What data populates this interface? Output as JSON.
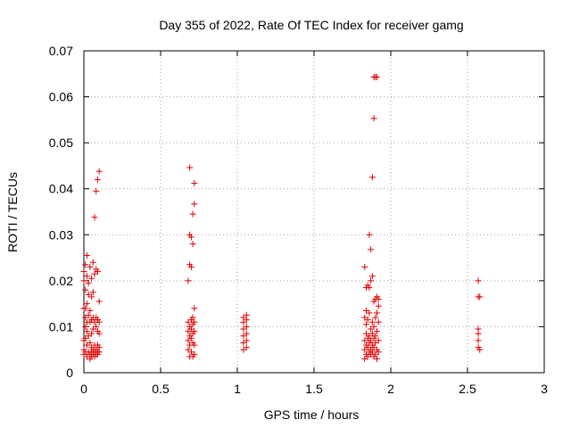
{
  "chart_data": {
    "type": "scatter",
    "title": "Day 355 of 2022, Rate Of TEC Index for receiver gamg",
    "xlabel": "GPS time / hours",
    "ylabel": "ROTI / TECUs",
    "xlim": [
      0,
      3
    ],
    "ylim": [
      0,
      0.07
    ],
    "x_ticks": [
      "0",
      "0.5",
      "1",
      "1.5",
      "2",
      "2.5",
      "3"
    ],
    "y_ticks": [
      "0",
      "0.01",
      "0.02",
      "0.03",
      "0.04",
      "0.05",
      "0.06",
      "0.07"
    ],
    "grid": true,
    "marker": "+",
    "color": "#e00000",
    "points": [
      [
        0.0,
        0.004
      ],
      [
        0.0,
        0.005
      ],
      [
        0.0,
        0.007
      ],
      [
        0.0,
        0.014
      ],
      [
        0.0,
        0.02
      ],
      [
        0.0,
        0.022
      ],
      [
        0.01,
        0.0045
      ],
      [
        0.01,
        0.0075
      ],
      [
        0.01,
        0.01
      ],
      [
        0.01,
        0.012
      ],
      [
        0.01,
        0.014
      ],
      [
        0.01,
        0.018
      ],
      [
        0.01,
        0.0235
      ],
      [
        0.02,
        0.0035
      ],
      [
        0.02,
        0.006
      ],
      [
        0.02,
        0.009
      ],
      [
        0.02,
        0.011
      ],
      [
        0.02,
        0.015
      ],
      [
        0.02,
        0.021
      ],
      [
        0.02,
        0.0255
      ],
      [
        0.03,
        0.0045
      ],
      [
        0.03,
        0.008
      ],
      [
        0.03,
        0.0125
      ],
      [
        0.03,
        0.017
      ],
      [
        0.03,
        0.0195
      ],
      [
        0.04,
        0.003
      ],
      [
        0.04,
        0.004
      ],
      [
        0.04,
        0.0065
      ],
      [
        0.04,
        0.011
      ],
      [
        0.04,
        0.0135
      ],
      [
        0.04,
        0.023
      ],
      [
        0.05,
        0.0035
      ],
      [
        0.05,
        0.0045
      ],
      [
        0.05,
        0.0055
      ],
      [
        0.05,
        0.0085
      ],
      [
        0.05,
        0.0115
      ],
      [
        0.05,
        0.0165
      ],
      [
        0.05,
        0.0205
      ],
      [
        0.06,
        0.004
      ],
      [
        0.06,
        0.005
      ],
      [
        0.06,
        0.0095
      ],
      [
        0.06,
        0.012
      ],
      [
        0.06,
        0.0175
      ],
      [
        0.06,
        0.024
      ],
      [
        0.07,
        0.0035
      ],
      [
        0.07,
        0.0045
      ],
      [
        0.07,
        0.006
      ],
      [
        0.07,
        0.011
      ],
      [
        0.07,
        0.0215
      ],
      [
        0.07,
        0.0338
      ],
      [
        0.08,
        0.004
      ],
      [
        0.08,
        0.005
      ],
      [
        0.08,
        0.01
      ],
      [
        0.08,
        0.012
      ],
      [
        0.08,
        0.0225
      ],
      [
        0.08,
        0.0395
      ],
      [
        0.09,
        0.004
      ],
      [
        0.09,
        0.0045
      ],
      [
        0.09,
        0.006
      ],
      [
        0.09,
        0.009
      ],
      [
        0.09,
        0.0115
      ],
      [
        0.09,
        0.022
      ],
      [
        0.09,
        0.042
      ],
      [
        0.1,
        0.0045
      ],
      [
        0.1,
        0.0055
      ],
      [
        0.1,
        0.0085
      ],
      [
        0.1,
        0.011
      ],
      [
        0.1,
        0.0155
      ],
      [
        0.1,
        0.0438
      ],
      [
        0.68,
        0.005
      ],
      [
        0.68,
        0.007
      ],
      [
        0.68,
        0.009
      ],
      [
        0.68,
        0.011
      ],
      [
        0.68,
        0.02
      ],
      [
        0.69,
        0.0035
      ],
      [
        0.69,
        0.006
      ],
      [
        0.69,
        0.008
      ],
      [
        0.69,
        0.01
      ],
      [
        0.69,
        0.0235
      ],
      [
        0.69,
        0.03
      ],
      [
        0.69,
        0.0446
      ],
      [
        0.7,
        0.0045
      ],
      [
        0.7,
        0.0075
      ],
      [
        0.7,
        0.0095
      ],
      [
        0.7,
        0.0115
      ],
      [
        0.7,
        0.023
      ],
      [
        0.7,
        0.0295
      ],
      [
        0.71,
        0.0035
      ],
      [
        0.71,
        0.0065
      ],
      [
        0.71,
        0.0085
      ],
      [
        0.71,
        0.0105
      ],
      [
        0.71,
        0.012
      ],
      [
        0.71,
        0.028
      ],
      [
        0.71,
        0.0345
      ],
      [
        0.72,
        0.004
      ],
      [
        0.72,
        0.006
      ],
      [
        0.72,
        0.009
      ],
      [
        0.72,
        0.011
      ],
      [
        0.72,
        0.014
      ],
      [
        0.72,
        0.0367
      ],
      [
        0.72,
        0.0412
      ],
      [
        1.04,
        0.005
      ],
      [
        1.04,
        0.0065
      ],
      [
        1.04,
        0.008
      ],
      [
        1.04,
        0.0095
      ],
      [
        1.04,
        0.011
      ],
      [
        1.04,
        0.012
      ],
      [
        1.06,
        0.0055
      ],
      [
        1.06,
        0.007
      ],
      [
        1.06,
        0.0085
      ],
      [
        1.06,
        0.01
      ],
      [
        1.06,
        0.0115
      ],
      [
        1.06,
        0.0125
      ],
      [
        1.83,
        0.003
      ],
      [
        1.83,
        0.005
      ],
      [
        1.83,
        0.007
      ],
      [
        1.83,
        0.012
      ],
      [
        1.83,
        0.023
      ],
      [
        1.84,
        0.004
      ],
      [
        1.84,
        0.006
      ],
      [
        1.84,
        0.0085
      ],
      [
        1.84,
        0.0105
      ],
      [
        1.84,
        0.0135
      ],
      [
        1.84,
        0.0185
      ],
      [
        1.85,
        0.0035
      ],
      [
        1.85,
        0.0055
      ],
      [
        1.85,
        0.0075
      ],
      [
        1.85,
        0.0115
      ],
      [
        1.85,
        0.019
      ],
      [
        1.86,
        0.0045
      ],
      [
        1.86,
        0.0065
      ],
      [
        1.86,
        0.008
      ],
      [
        1.86,
        0.013
      ],
      [
        1.86,
        0.0185
      ],
      [
        1.86,
        0.03
      ],
      [
        1.87,
        0.004
      ],
      [
        1.87,
        0.005
      ],
      [
        1.87,
        0.007
      ],
      [
        1.87,
        0.0095
      ],
      [
        1.87,
        0.02
      ],
      [
        1.87,
        0.0268
      ],
      [
        1.88,
        0.0045
      ],
      [
        1.88,
        0.006
      ],
      [
        1.88,
        0.0085
      ],
      [
        1.88,
        0.011
      ],
      [
        1.88,
        0.021
      ],
      [
        1.88,
        0.0425
      ],
      [
        1.89,
        0.0035
      ],
      [
        1.89,
        0.0055
      ],
      [
        1.89,
        0.0075
      ],
      [
        1.89,
        0.01
      ],
      [
        1.89,
        0.0155
      ],
      [
        1.89,
        0.0553
      ],
      [
        1.89,
        0.0643
      ],
      [
        1.9,
        0.004
      ],
      [
        1.9,
        0.0065
      ],
      [
        1.9,
        0.008
      ],
      [
        1.9,
        0.012
      ],
      [
        1.9,
        0.016
      ],
      [
        1.9,
        0.0643
      ],
      [
        1.91,
        0.003
      ],
      [
        1.91,
        0.005
      ],
      [
        1.91,
        0.009
      ],
      [
        1.91,
        0.013
      ],
      [
        1.91,
        0.0165
      ],
      [
        1.91,
        0.0643
      ],
      [
        1.92,
        0.0045
      ],
      [
        1.92,
        0.007
      ],
      [
        1.92,
        0.011
      ],
      [
        1.92,
        0.0145
      ],
      [
        1.92,
        0.016
      ],
      [
        2.57,
        0.0055
      ],
      [
        2.57,
        0.007
      ],
      [
        2.57,
        0.0085
      ],
      [
        2.57,
        0.0095
      ],
      [
        2.57,
        0.0165
      ],
      [
        2.57,
        0.02
      ],
      [
        2.58,
        0.005
      ],
      [
        2.58,
        0.0165
      ]
    ]
  }
}
